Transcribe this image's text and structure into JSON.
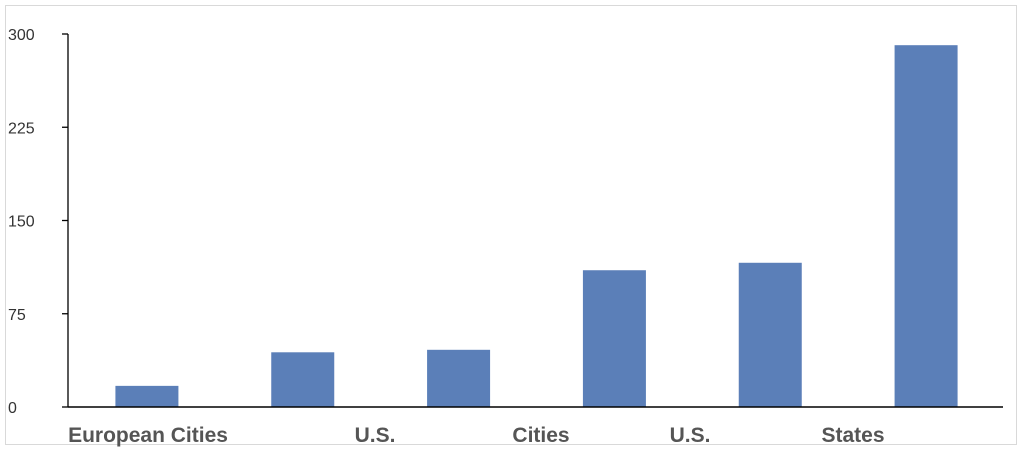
{
  "chart_data": {
    "type": "bar",
    "categories": [
      "European Cities",
      "U.S.",
      "Cities",
      "U.S.",
      "States",
      ""
    ],
    "values": [
      17,
      44,
      46,
      110,
      116,
      291
    ],
    "ylim": [
      0,
      300
    ],
    "yticks": [
      0,
      75,
      150,
      225,
      300
    ],
    "title": "",
    "xlabel": "",
    "ylabel": "",
    "grid": false,
    "bar_color": "#5b7fb8",
    "axis_color": "#000000"
  }
}
